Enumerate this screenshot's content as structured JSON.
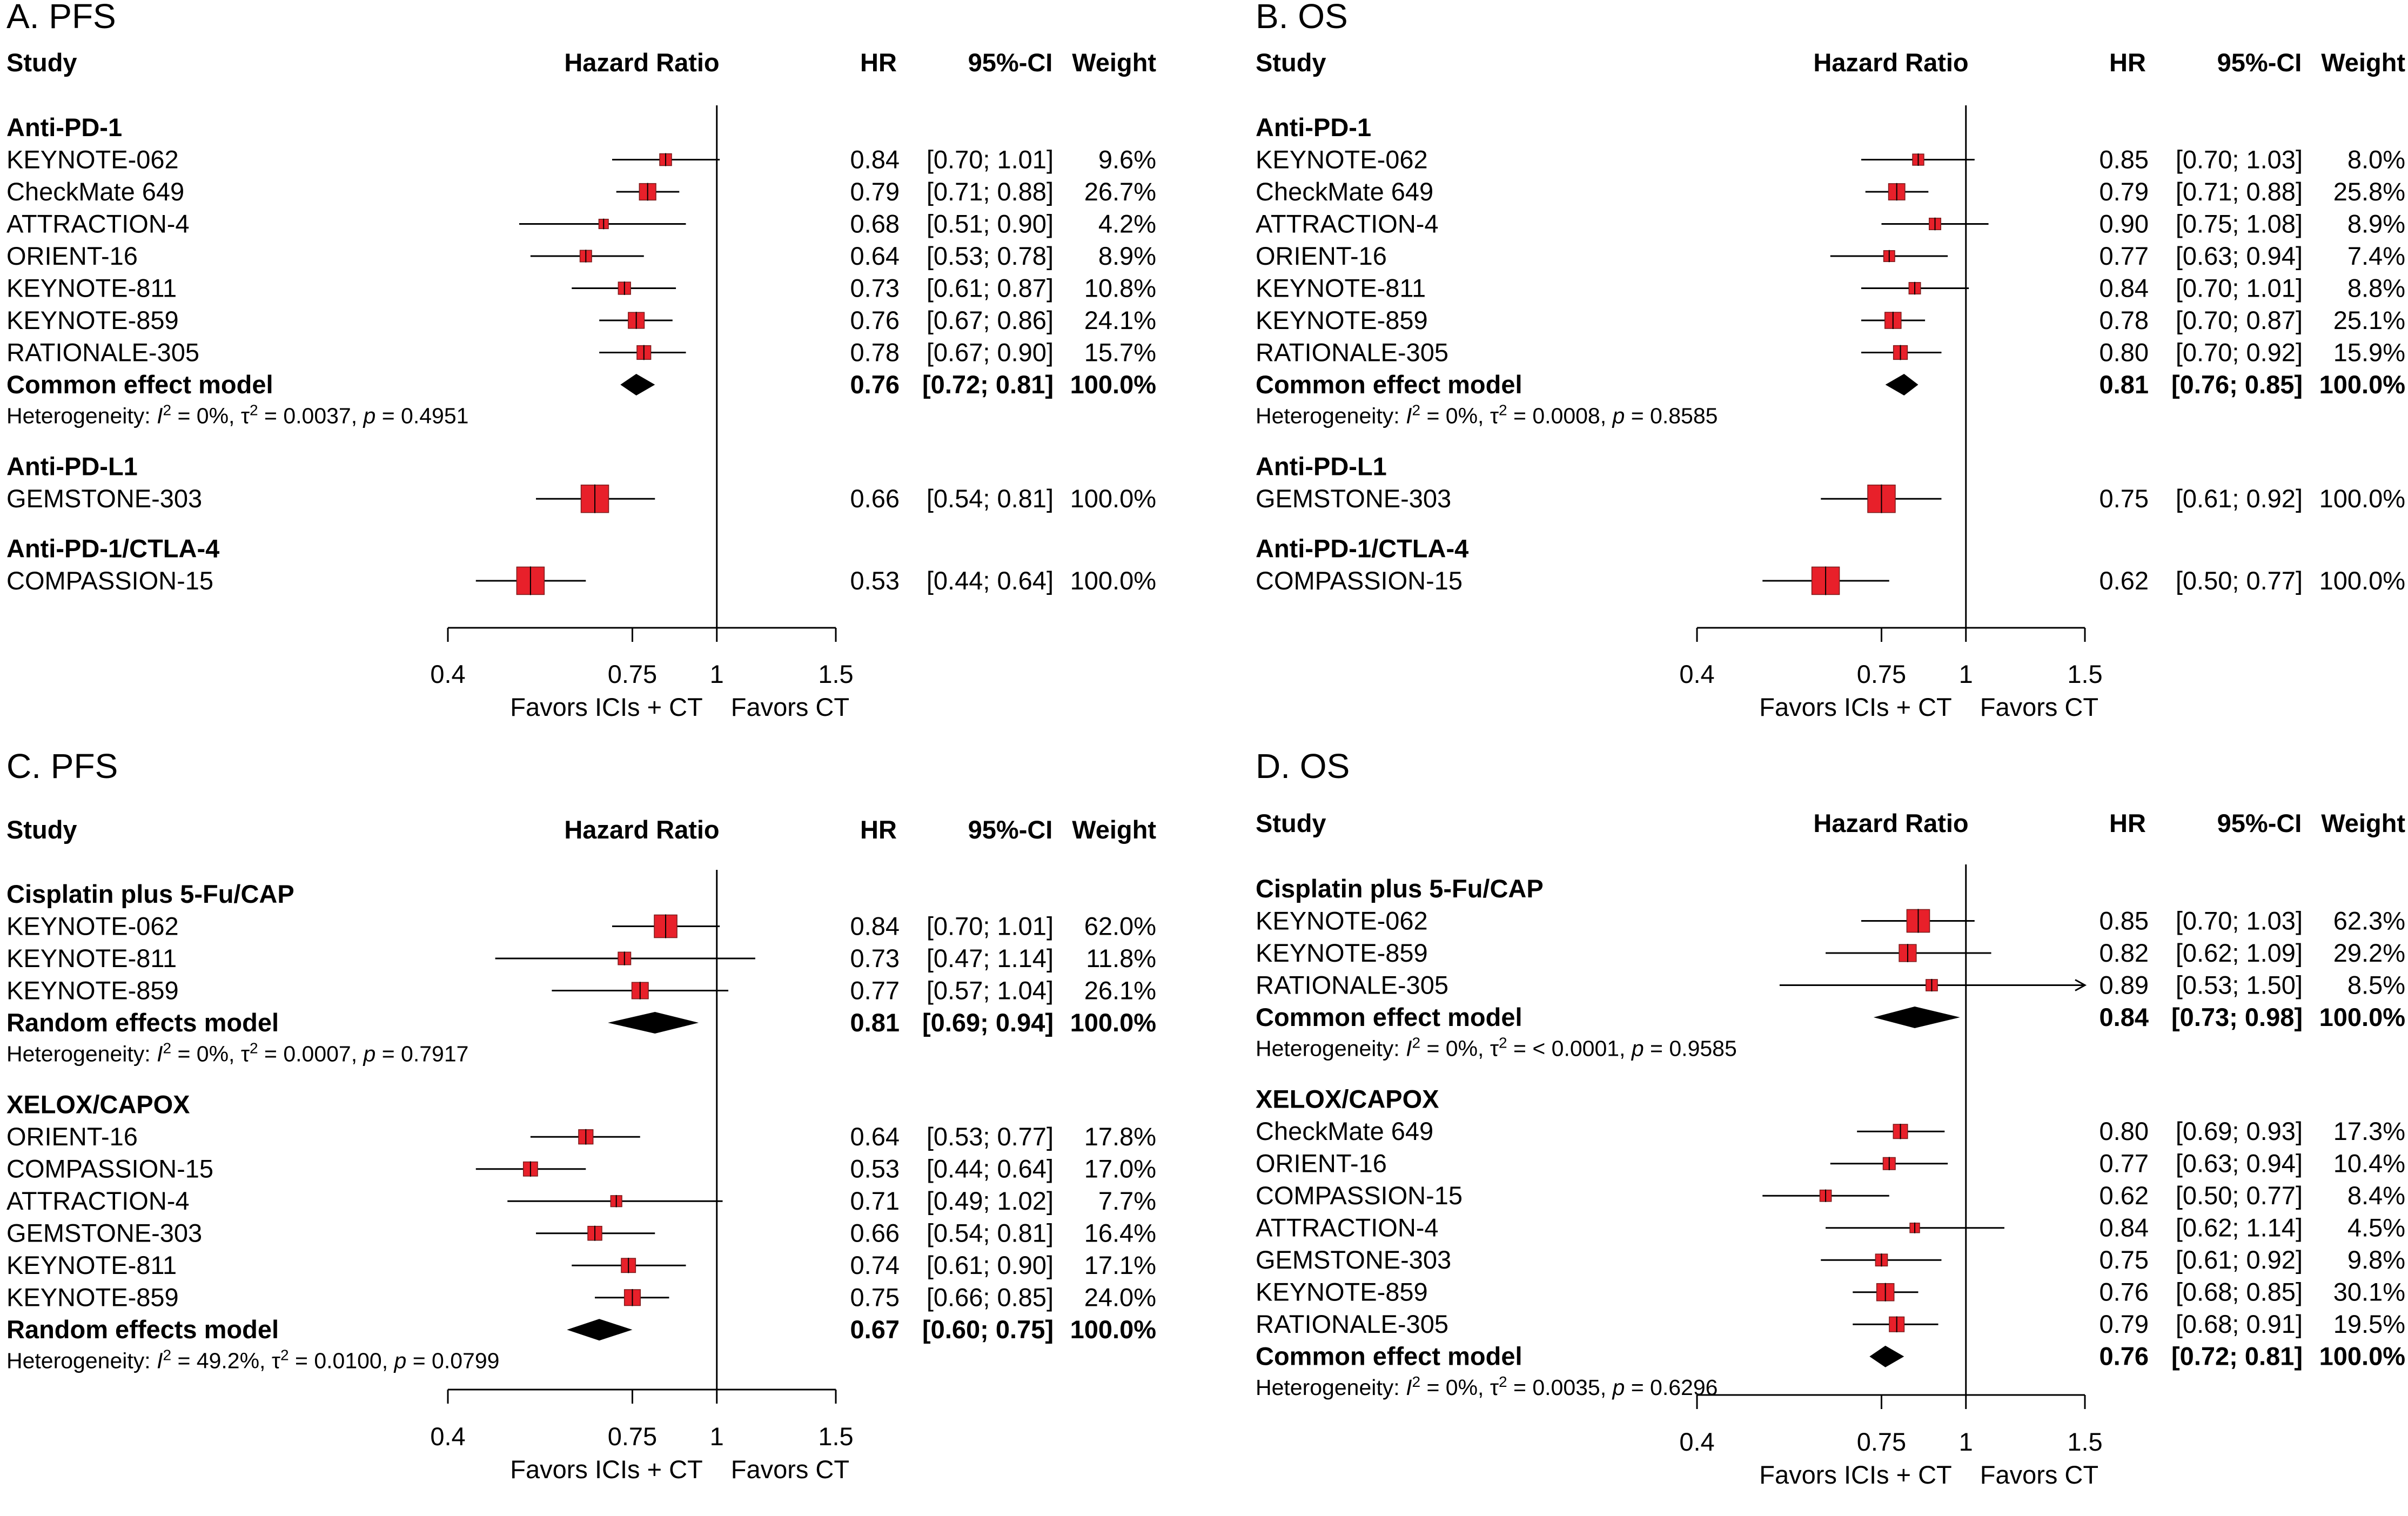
{
  "colors": {
    "box": "#e8202a",
    "box_stroke": "#7a1c1c",
    "line": "#000000",
    "diamond": "#000000"
  },
  "chart_data": [
    {
      "type": "forest",
      "title": "A. PFS",
      "columns": {
        "study": "Study",
        "plot": "Hazard Ratio",
        "hr": "HR",
        "ci": "95%-CI",
        "weight": "Weight"
      },
      "xscale": "log",
      "xlim": [
        0.4,
        1.5
      ],
      "ticks": [
        "0.4",
        "0.75",
        "1",
        "1.5"
      ],
      "reference": 1,
      "favors": [
        "Favors ICIs + CT",
        "Favors CT"
      ],
      "rows": [
        {
          "kind": "group",
          "label": "Anti-PD-1"
        },
        {
          "kind": "study",
          "label": "KEYNOTE-062",
          "hr": 0.84,
          "lo": 0.7,
          "hi": 1.01,
          "hr_text": "0.84",
          "ci_text": "[0.70; 1.01]",
          "weight": 9.6,
          "weight_text": "9.6%"
        },
        {
          "kind": "study",
          "label": "CheckMate 649",
          "hr": 0.79,
          "lo": 0.71,
          "hi": 0.88,
          "hr_text": "0.79",
          "ci_text": "[0.71; 0.88]",
          "weight": 26.7,
          "weight_text": "26.7%"
        },
        {
          "kind": "study",
          "label": "ATTRACTION-4",
          "hr": 0.68,
          "lo": 0.51,
          "hi": 0.9,
          "hr_text": "0.68",
          "ci_text": "[0.51; 0.90]",
          "weight": 4.2,
          "weight_text": "4.2%"
        },
        {
          "kind": "study",
          "label": "ORIENT-16",
          "hr": 0.64,
          "lo": 0.53,
          "hi": 0.78,
          "hr_text": "0.64",
          "ci_text": "[0.53; 0.78]",
          "weight": 8.9,
          "weight_text": "8.9%"
        },
        {
          "kind": "study",
          "label": "KEYNOTE-811",
          "hr": 0.73,
          "lo": 0.61,
          "hi": 0.87,
          "hr_text": "0.73",
          "ci_text": "[0.61; 0.87]",
          "weight": 10.8,
          "weight_text": "10.8%"
        },
        {
          "kind": "study",
          "label": "KEYNOTE-859",
          "hr": 0.76,
          "lo": 0.67,
          "hi": 0.86,
          "hr_text": "0.76",
          "ci_text": "[0.67; 0.86]",
          "weight": 24.1,
          "weight_text": "24.1%"
        },
        {
          "kind": "study",
          "label": "RATIONALE-305",
          "hr": 0.78,
          "lo": 0.67,
          "hi": 0.9,
          "hr_text": "0.78",
          "ci_text": "[0.67; 0.90]",
          "weight": 15.7,
          "weight_text": "15.7%"
        },
        {
          "kind": "pooled",
          "label": "Common effect model",
          "hr": 0.76,
          "lo": 0.72,
          "hi": 0.81,
          "hr_text": "0.76",
          "ci_text": "[0.72; 0.81]",
          "weight_text": "100.0%"
        },
        {
          "kind": "het",
          "i2": "0%",
          "tau2": "0.0037",
          "p": "0.4951"
        },
        {
          "kind": "gap"
        },
        {
          "kind": "group",
          "label": "Anti-PD-L1"
        },
        {
          "kind": "study",
          "label": "GEMSTONE-303",
          "hr": 0.66,
          "lo": 0.54,
          "hi": 0.81,
          "hr_text": "0.66",
          "ci_text": "[0.54; 0.81]",
          "weight": 100.0,
          "weight_text": "100.0%"
        },
        {
          "kind": "gap"
        },
        {
          "kind": "group",
          "label": "Anti-PD-1/CTLA-4"
        },
        {
          "kind": "study",
          "label": "COMPASSION-15",
          "hr": 0.53,
          "lo": 0.44,
          "hi": 0.64,
          "hr_text": "0.53",
          "ci_text": "[0.44; 0.64]",
          "weight": 100.0,
          "weight_text": "100.0%"
        }
      ]
    },
    {
      "type": "forest",
      "title": "B. OS",
      "columns": {
        "study": "Study",
        "plot": "Hazard Ratio",
        "hr": "HR",
        "ci": "95%-CI",
        "weight": "Weight"
      },
      "xscale": "log",
      "xlim": [
        0.4,
        1.5
      ],
      "ticks": [
        "0.4",
        "0.75",
        "1",
        "1.5"
      ],
      "reference": 1,
      "favors": [
        "Favors ICIs + CT",
        "Favors CT"
      ],
      "rows": [
        {
          "kind": "group",
          "label": "Anti-PD-1"
        },
        {
          "kind": "study",
          "label": "KEYNOTE-062",
          "hr": 0.85,
          "lo": 0.7,
          "hi": 1.03,
          "hr_text": "0.85",
          "ci_text": "[0.70; 1.03]",
          "weight": 8.0,
          "weight_text": "8.0%"
        },
        {
          "kind": "study",
          "label": "CheckMate 649",
          "hr": 0.79,
          "lo": 0.71,
          "hi": 0.88,
          "hr_text": "0.79",
          "ci_text": "[0.71; 0.88]",
          "weight": 25.8,
          "weight_text": "25.8%"
        },
        {
          "kind": "study",
          "label": "ATTRACTION-4",
          "hr": 0.9,
          "lo": 0.75,
          "hi": 1.08,
          "hr_text": "0.90",
          "ci_text": "[0.75; 1.08]",
          "weight": 8.9,
          "weight_text": "8.9%"
        },
        {
          "kind": "study",
          "label": "ORIENT-16",
          "hr": 0.77,
          "lo": 0.63,
          "hi": 0.94,
          "hr_text": "0.77",
          "ci_text": "[0.63; 0.94]",
          "weight": 7.4,
          "weight_text": "7.4%"
        },
        {
          "kind": "study",
          "label": "KEYNOTE-811",
          "hr": 0.84,
          "lo": 0.7,
          "hi": 1.01,
          "hr_text": "0.84",
          "ci_text": "[0.70; 1.01]",
          "weight": 8.8,
          "weight_text": "8.8%"
        },
        {
          "kind": "study",
          "label": "KEYNOTE-859",
          "hr": 0.78,
          "lo": 0.7,
          "hi": 0.87,
          "hr_text": "0.78",
          "ci_text": "[0.70; 0.87]",
          "weight": 25.1,
          "weight_text": "25.1%"
        },
        {
          "kind": "study",
          "label": "RATIONALE-305",
          "hr": 0.8,
          "lo": 0.7,
          "hi": 0.92,
          "hr_text": "0.80",
          "ci_text": "[0.70; 0.92]",
          "weight": 15.9,
          "weight_text": "15.9%"
        },
        {
          "kind": "pooled",
          "label": "Common effect model",
          "hr": 0.81,
          "lo": 0.76,
          "hi": 0.85,
          "hr_text": "0.81",
          "ci_text": "[0.76; 0.85]",
          "weight_text": "100.0%"
        },
        {
          "kind": "het",
          "i2": "0%",
          "tau2": "0.0008",
          "p": "0.8585"
        },
        {
          "kind": "gap"
        },
        {
          "kind": "group",
          "label": "Anti-PD-L1"
        },
        {
          "kind": "study",
          "label": "GEMSTONE-303",
          "hr": 0.75,
          "lo": 0.61,
          "hi": 0.92,
          "hr_text": "0.75",
          "ci_text": "[0.61; 0.92]",
          "weight": 100.0,
          "weight_text": "100.0%"
        },
        {
          "kind": "gap"
        },
        {
          "kind": "group",
          "label": "Anti-PD-1/CTLA-4"
        },
        {
          "kind": "study",
          "label": "COMPASSION-15",
          "hr": 0.62,
          "lo": 0.5,
          "hi": 0.77,
          "hr_text": "0.62",
          "ci_text": "[0.50; 0.77]",
          "weight": 100.0,
          "weight_text": "100.0%"
        }
      ]
    },
    {
      "type": "forest",
      "title": "C. PFS",
      "columns": {
        "study": "Study",
        "plot": "Hazard Ratio",
        "hr": "HR",
        "ci": "95%-CI",
        "weight": "Weight"
      },
      "xscale": "log",
      "xlim": [
        0.4,
        1.5
      ],
      "ticks": [
        "0.4",
        "0.75",
        "1",
        "1.5"
      ],
      "reference": 1,
      "favors": [
        "Favors ICIs + CT",
        "Favors CT"
      ],
      "rows": [
        {
          "kind": "group",
          "label": "Cisplatin plus 5-Fu/CAP"
        },
        {
          "kind": "study",
          "label": "KEYNOTE-062",
          "hr": 0.84,
          "lo": 0.7,
          "hi": 1.01,
          "hr_text": "0.84",
          "ci_text": "[0.70; 1.01]",
          "weight": 62.0,
          "weight_text": "62.0%"
        },
        {
          "kind": "study",
          "label": "KEYNOTE-811",
          "hr": 0.73,
          "lo": 0.47,
          "hi": 1.14,
          "hr_text": "0.73",
          "ci_text": "[0.47; 1.14]",
          "weight": 11.8,
          "weight_text": "11.8%"
        },
        {
          "kind": "study",
          "label": "KEYNOTE-859",
          "hr": 0.77,
          "lo": 0.57,
          "hi": 1.04,
          "hr_text": "0.77",
          "ci_text": "[0.57; 1.04]",
          "weight": 26.1,
          "weight_text": "26.1%"
        },
        {
          "kind": "pooled",
          "label": "Random effects model",
          "hr": 0.81,
          "lo": 0.69,
          "hi": 0.94,
          "hr_text": "0.81",
          "ci_text": "[0.69; 0.94]",
          "weight_text": "100.0%"
        },
        {
          "kind": "het",
          "i2": "0%",
          "tau2": "0.0007",
          "p": "0.7917"
        },
        {
          "kind": "gap"
        },
        {
          "kind": "group",
          "label": "XELOX/CAPOX"
        },
        {
          "kind": "study",
          "label": "ORIENT-16",
          "hr": 0.64,
          "lo": 0.53,
          "hi": 0.77,
          "hr_text": "0.64",
          "ci_text": "[0.53; 0.77]",
          "weight": 17.8,
          "weight_text": "17.8%"
        },
        {
          "kind": "study",
          "label": "COMPASSION-15",
          "hr": 0.53,
          "lo": 0.44,
          "hi": 0.64,
          "hr_text": "0.53",
          "ci_text": "[0.44; 0.64]",
          "weight": 17.0,
          "weight_text": "17.0%"
        },
        {
          "kind": "study",
          "label": "ATTRACTION-4",
          "hr": 0.71,
          "lo": 0.49,
          "hi": 1.02,
          "hr_text": "0.71",
          "ci_text": "[0.49; 1.02]",
          "weight": 7.7,
          "weight_text": "7.7%"
        },
        {
          "kind": "study",
          "label": "GEMSTONE-303",
          "hr": 0.66,
          "lo": 0.54,
          "hi": 0.81,
          "hr_text": "0.66",
          "ci_text": "[0.54; 0.81]",
          "weight": 16.4,
          "weight_text": "16.4%"
        },
        {
          "kind": "study",
          "label": "KEYNOTE-811",
          "hr": 0.74,
          "lo": 0.61,
          "hi": 0.9,
          "hr_text": "0.74",
          "ci_text": "[0.61; 0.90]",
          "weight": 17.1,
          "weight_text": "17.1%"
        },
        {
          "kind": "study",
          "label": "KEYNOTE-859",
          "hr": 0.75,
          "lo": 0.66,
          "hi": 0.85,
          "hr_text": "0.75",
          "ci_text": "[0.66; 0.85]",
          "weight": 24.0,
          "weight_text": "24.0%"
        },
        {
          "kind": "pooled",
          "label": "Random effects model",
          "hr": 0.67,
          "lo": 0.6,
          "hi": 0.75,
          "hr_text": "0.67",
          "ci_text": "[0.60; 0.75]",
          "weight_text": "100.0%"
        },
        {
          "kind": "het",
          "i2": "49.2%",
          "tau2": "0.0100",
          "p": "0.0799"
        }
      ]
    },
    {
      "type": "forest",
      "title": "D. OS",
      "columns": {
        "study": "Study",
        "plot": "Hazard Ratio",
        "hr": "HR",
        "ci": "95%-CI",
        "weight": "Weight"
      },
      "xscale": "log",
      "xlim": [
        0.4,
        1.5
      ],
      "ticks": [
        "0.4",
        "0.75",
        "1",
        "1.5"
      ],
      "reference": 1,
      "favors": [
        "Favors ICIs + CT",
        "Favors CT"
      ],
      "rows": [
        {
          "kind": "group",
          "label": "Cisplatin plus 5-Fu/CAP"
        },
        {
          "kind": "study",
          "label": "KEYNOTE-062",
          "hr": 0.85,
          "lo": 0.7,
          "hi": 1.03,
          "hr_text": "0.85",
          "ci_text": "[0.70; 1.03]",
          "weight": 62.3,
          "weight_text": "62.3%"
        },
        {
          "kind": "study",
          "label": "KEYNOTE-859",
          "hr": 0.82,
          "lo": 0.62,
          "hi": 1.09,
          "hr_text": "0.82",
          "ci_text": "[0.62; 1.09]",
          "weight": 29.2,
          "weight_text": "29.2%"
        },
        {
          "kind": "study",
          "label": "RATIONALE-305",
          "hr": 0.89,
          "lo": 0.53,
          "hi": 1.5,
          "hr_text": "0.89",
          "ci_text": "[0.53; 1.50]",
          "weight": 8.5,
          "weight_text": "8.5%",
          "arrow_right": true
        },
        {
          "kind": "pooled",
          "label": "Common effect model",
          "hr": 0.84,
          "lo": 0.73,
          "hi": 0.98,
          "hr_text": "0.84",
          "ci_text": "[0.73; 0.98]",
          "weight_text": "100.0%"
        },
        {
          "kind": "het",
          "i2": "0%",
          "tau2": "< 0.0001",
          "p": "0.9585"
        },
        {
          "kind": "gap"
        },
        {
          "kind": "group",
          "label": "XELOX/CAPOX"
        },
        {
          "kind": "study",
          "label": "CheckMate 649",
          "hr": 0.8,
          "lo": 0.69,
          "hi": 0.93,
          "hr_text": "0.80",
          "ci_text": "[0.69; 0.93]",
          "weight": 17.3,
          "weight_text": "17.3%"
        },
        {
          "kind": "study",
          "label": "ORIENT-16",
          "hr": 0.77,
          "lo": 0.63,
          "hi": 0.94,
          "hr_text": "0.77",
          "ci_text": "[0.63; 0.94]",
          "weight": 10.4,
          "weight_text": "10.4%"
        },
        {
          "kind": "study",
          "label": "COMPASSION-15",
          "hr": 0.62,
          "lo": 0.5,
          "hi": 0.77,
          "hr_text": "0.62",
          "ci_text": "[0.50; 0.77]",
          "weight": 8.4,
          "weight_text": "8.4%"
        },
        {
          "kind": "study",
          "label": "ATTRACTION-4",
          "hr": 0.84,
          "lo": 0.62,
          "hi": 1.14,
          "hr_text": "0.84",
          "ci_text": "[0.62; 1.14]",
          "weight": 4.5,
          "weight_text": "4.5%"
        },
        {
          "kind": "study",
          "label": "GEMSTONE-303",
          "hr": 0.75,
          "lo": 0.61,
          "hi": 0.92,
          "hr_text": "0.75",
          "ci_text": "[0.61; 0.92]",
          "weight": 9.8,
          "weight_text": "9.8%"
        },
        {
          "kind": "study",
          "label": "KEYNOTE-859",
          "hr": 0.76,
          "lo": 0.68,
          "hi": 0.85,
          "hr_text": "0.76",
          "ci_text": "[0.68; 0.85]",
          "weight": 30.1,
          "weight_text": "30.1%"
        },
        {
          "kind": "study",
          "label": "RATIONALE-305",
          "hr": 0.79,
          "lo": 0.68,
          "hi": 0.91,
          "hr_text": "0.79",
          "ci_text": "[0.68; 0.91]",
          "weight": 19.5,
          "weight_text": "19.5%"
        },
        {
          "kind": "pooled",
          "label": "Common effect model",
          "hr": 0.76,
          "lo": 0.72,
          "hi": 0.81,
          "hr_text": "0.76",
          "ci_text": "[0.72; 0.81]",
          "weight_text": "100.0%"
        },
        {
          "kind": "het",
          "i2": "0%",
          "tau2": "0.0035",
          "p": "0.6296"
        }
      ]
    }
  ]
}
